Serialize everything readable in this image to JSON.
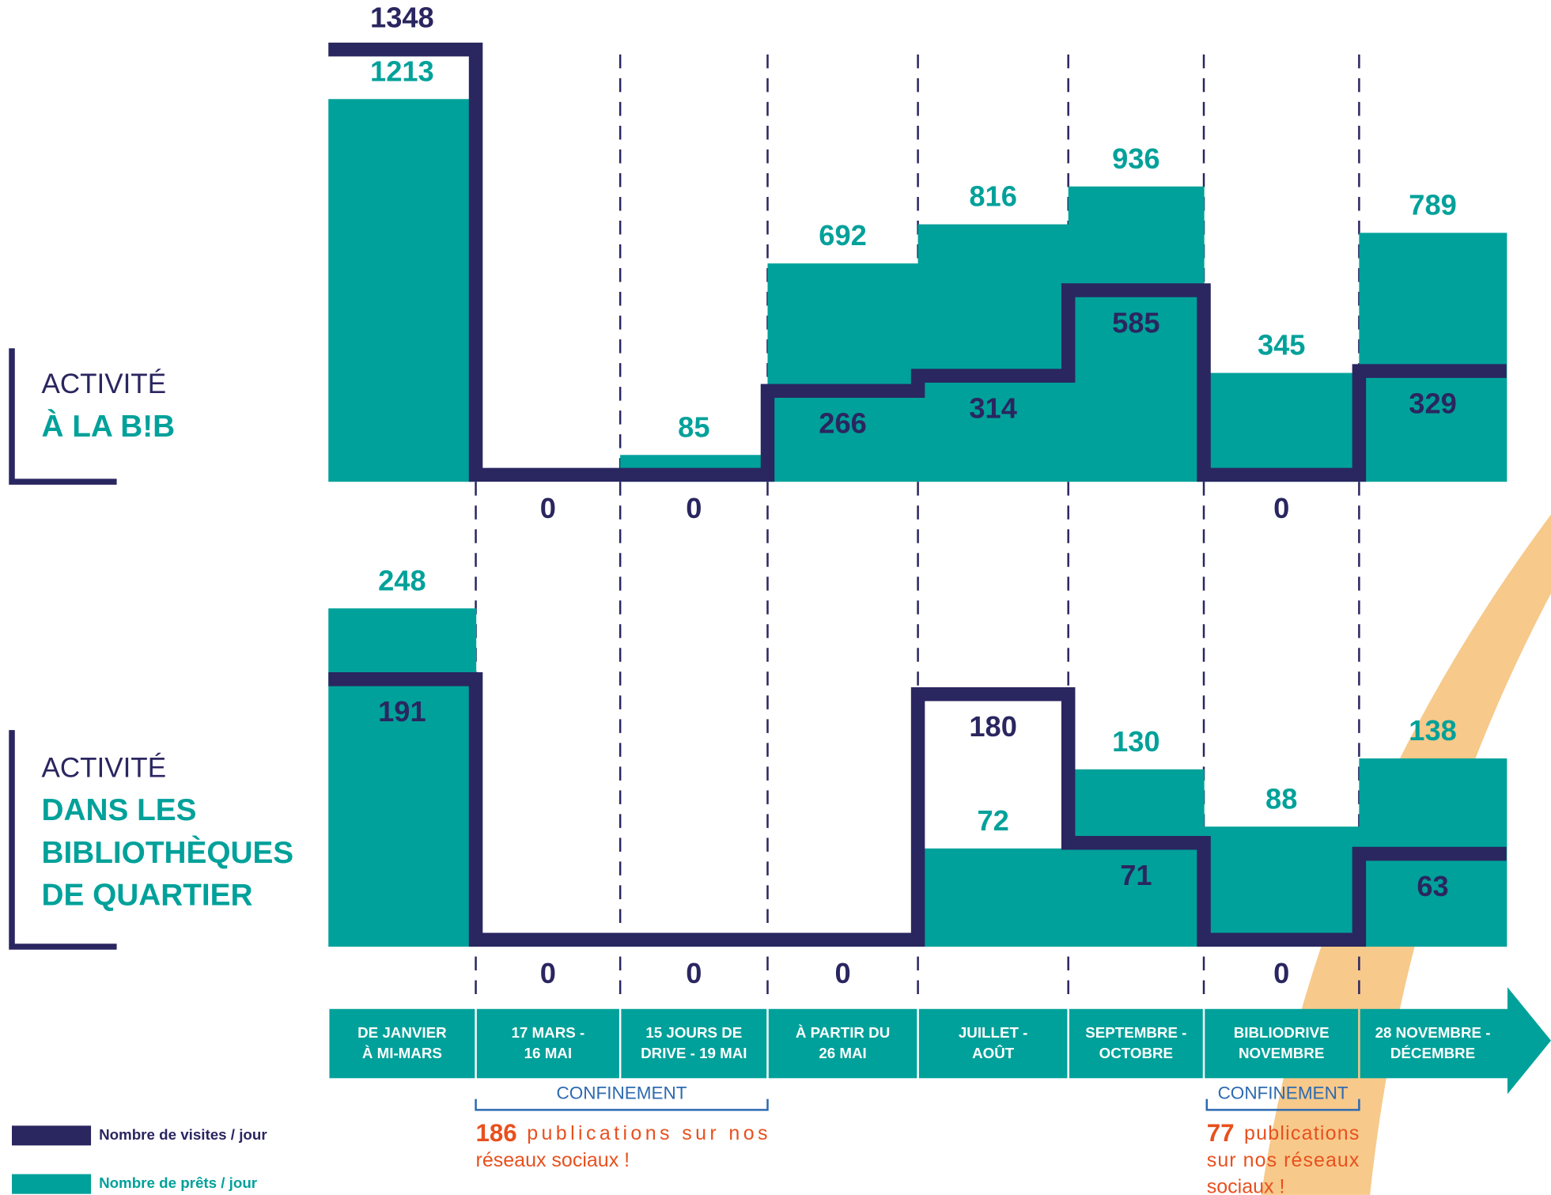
{
  "chart_data": [
    {
      "type": "bar",
      "title": [
        "ACTIVITÉ",
        "À LA B!B"
      ],
      "loans": [
        1213,
        null,
        85,
        692,
        816,
        936,
        345,
        789
      ],
      "visits": [
        1348,
        0,
        0,
        266,
        314,
        585,
        0,
        329
      ]
    },
    {
      "type": "bar",
      "title": [
        "ACTIVITÉ",
        "DANS LES",
        "BIBLIOTHÈQUES",
        "DE QUARTIER"
      ],
      "loans": [
        248,
        null,
        null,
        null,
        72,
        130,
        88,
        138
      ],
      "visits": [
        191,
        0,
        0,
        0,
        180,
        71,
        0,
        63
      ]
    }
  ],
  "categories": [
    [
      "DE JANVIER",
      "À MI-MARS"
    ],
    [
      "17 MARS -",
      "16 MAI"
    ],
    [
      "15 JOURS DE",
      "DRIVE - 19 MAI"
    ],
    [
      "À PARTIR DU",
      "26 MAI"
    ],
    [
      "JUILLET -",
      "AOÛT"
    ],
    [
      "SEPTEMBRE -",
      "OCTOBRE"
    ],
    [
      "BIBLIODRIVE",
      "NOVEMBRE"
    ],
    [
      "28 NOVEMBRE -",
      "DÉCEMBRE"
    ]
  ],
  "legend": {
    "visits": {
      "name": "Nombre de visites / jour",
      "color": "#2a2660"
    },
    "loans": {
      "name": "Nombre de prêts / jour",
      "color": "#00a19a"
    }
  },
  "annotations": [
    {
      "label": "CONFINEMENT",
      "count": 186,
      "text": [
        "publications sur nos",
        "réseaux sociaux !"
      ]
    },
    {
      "label": "CONFINEMENT",
      "count": 77,
      "text": [
        "publications",
        "sur nos réseaux",
        "sociaux !"
      ]
    }
  ]
}
